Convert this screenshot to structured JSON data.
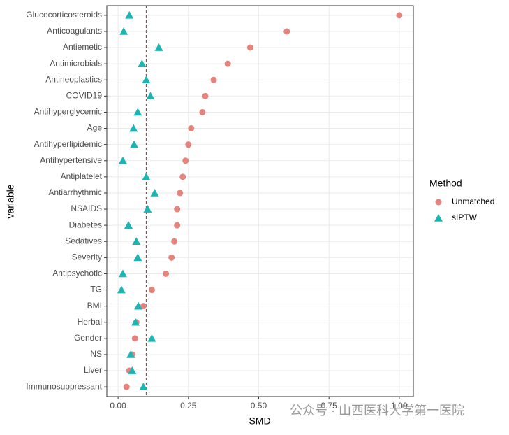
{
  "chart_data": {
    "type": "dot",
    "x_label": "SMD",
    "y_label": "variable",
    "categories": [
      "Glucocorticosteroids",
      "Anticoagulants",
      "Antiemetic",
      "Antimicrobials",
      "Antineoplastics",
      "COVID19",
      "Antihyperglycemic",
      "Age",
      "Antihyperlipidemic",
      "Antihypertensive",
      "Antiplatelet",
      "Antiarrhythmic",
      "NSAIDS",
      "Diabetes",
      "Sedatives",
      "Severity",
      "Antipsychotic",
      "TG",
      "BMI",
      "Herbal",
      "Gender",
      "NS",
      "Liver",
      "Immunosuppressant"
    ],
    "series": [
      {
        "name": "Unmatched",
        "color": "#e5847c",
        "marker": "circle",
        "values": [
          1.0,
          0.6,
          0.47,
          0.39,
          0.34,
          0.31,
          0.3,
          0.26,
          0.25,
          0.24,
          0.23,
          0.22,
          0.21,
          0.21,
          0.2,
          0.19,
          0.17,
          0.12,
          0.09,
          0.065,
          0.06,
          0.05,
          0.04,
          0.03
        ]
      },
      {
        "name": "sIPTW",
        "color": "#1db5b3",
        "marker": "triangle",
        "values": [
          0.04,
          0.02,
          0.145,
          0.085,
          0.1,
          0.115,
          0.07,
          0.055,
          0.057,
          0.017,
          0.1,
          0.13,
          0.105,
          0.037,
          0.065,
          0.07,
          0.017,
          0.012,
          0.072,
          0.062,
          0.12,
          0.045,
          0.05,
          0.09
        ]
      }
    ],
    "reference_line": 0.1,
    "xlim": [
      -0.04,
      1.05
    ],
    "xticks": [
      {
        "value": 0,
        "label": "0.00"
      },
      {
        "value": 0.25,
        "label": "0.25"
      },
      {
        "value": 0.5,
        "label": "0.50"
      },
      {
        "value": 0.75,
        "label": "0.75"
      },
      {
        "value": 1,
        "label": "1.00"
      }
    ],
    "grid": true,
    "legend_title": "Method",
    "legend_position": "right",
    "watermark": "公众号 · 山西医科大学第一医院"
  }
}
